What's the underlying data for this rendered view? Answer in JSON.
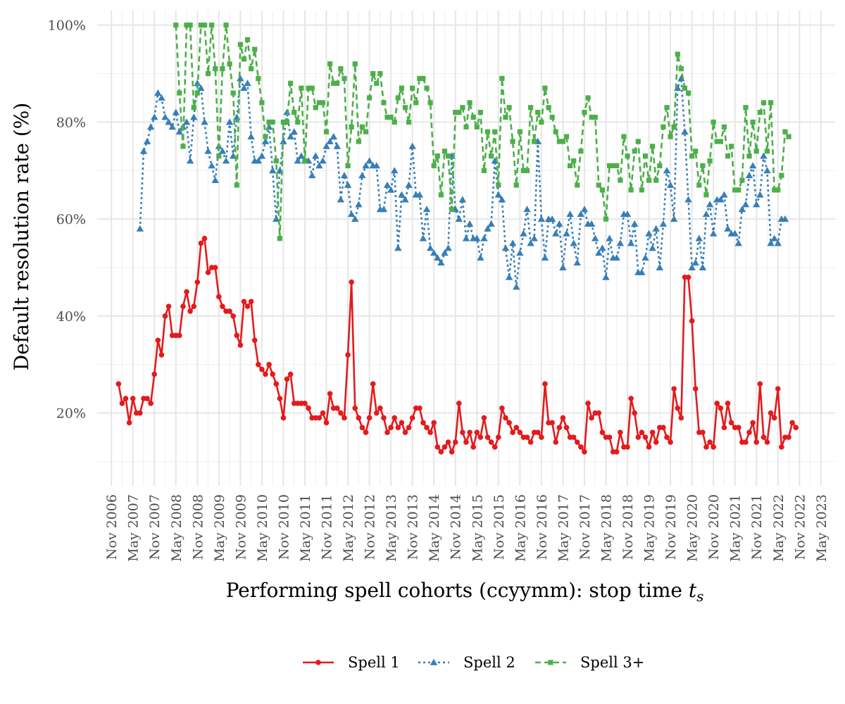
{
  "chart_data": {
    "type": "line",
    "title": "",
    "xlabel": "Performing spell cohorts (ccyymm): stop time",
    "xlabel_symbol": "t",
    "xlabel_subscript": "s",
    "ylabel": "Default resolution rate (%)",
    "x_start": "2006-11",
    "x_end": "2023-05",
    "ylim": [
      0.05,
      1.03
    ],
    "y_ticks": [
      0.2,
      0.4,
      0.6,
      0.8,
      1.0
    ],
    "y_tick_labels": [
      "20%",
      "40%",
      "60%",
      "80%",
      "100%"
    ],
    "x_ticks": [
      "2006-11",
      "2007-05",
      "2007-11",
      "2008-05",
      "2008-11",
      "2009-05",
      "2009-11",
      "2010-05",
      "2010-11",
      "2011-05",
      "2011-11",
      "2012-05",
      "2012-11",
      "2013-05",
      "2013-11",
      "2014-05",
      "2014-11",
      "2015-05",
      "2015-11",
      "2016-05",
      "2016-11",
      "2017-05",
      "2017-11",
      "2018-05",
      "2018-11",
      "2019-05",
      "2019-11",
      "2020-05",
      "2020-11",
      "2021-05",
      "2021-11",
      "2022-05",
      "2022-11",
      "2023-05"
    ],
    "x_tick_labels": [
      "Nov 2006",
      "May 2007",
      "Nov 2007",
      "May 2008",
      "Nov 2008",
      "May 2009",
      "Nov 2009",
      "May 2010",
      "Nov 2010",
      "May 2011",
      "Nov 2011",
      "May 2012",
      "Nov 2012",
      "May 2013",
      "Nov 2013",
      "May 2014",
      "Nov 2014",
      "May 2015",
      "Nov 2015",
      "May 2016",
      "Nov 2016",
      "May 2017",
      "Nov 2017",
      "May 2018",
      "Nov 2018",
      "May 2019",
      "Nov 2019",
      "May 2020",
      "Nov 2020",
      "May 2021",
      "Nov 2021",
      "May 2022",
      "Nov 2022",
      "May 2023"
    ],
    "grid": true,
    "legend_position": "bottom",
    "series": [
      {
        "name": "Spell 1",
        "color": "#e41a1c",
        "marker": "circle",
        "line_style": "solid",
        "start": "2007-01",
        "values": [
          0.26,
          0.22,
          0.23,
          0.18,
          0.23,
          0.2,
          0.2,
          0.23,
          0.23,
          0.22,
          0.28,
          0.35,
          0.32,
          0.4,
          0.42,
          0.36,
          0.36,
          0.36,
          0.42,
          0.45,
          0.41,
          0.42,
          0.47,
          0.55,
          0.56,
          0.49,
          0.5,
          0.5,
          0.44,
          0.42,
          0.41,
          0.41,
          0.4,
          0.36,
          0.34,
          0.43,
          0.42,
          0.43,
          0.35,
          0.3,
          0.29,
          0.28,
          0.3,
          0.28,
          0.26,
          0.23,
          0.19,
          0.27,
          0.28,
          0.22,
          0.22,
          0.22,
          0.22,
          0.21,
          0.19,
          0.19,
          0.19,
          0.2,
          0.18,
          0.24,
          0.21,
          0.21,
          0.2,
          0.19,
          0.32,
          0.47,
          0.21,
          0.19,
          0.17,
          0.16,
          0.19,
          0.26,
          0.2,
          0.21,
          0.19,
          0.16,
          0.17,
          0.19,
          0.17,
          0.18,
          0.16,
          0.17,
          0.19,
          0.21,
          0.21,
          0.18,
          0.17,
          0.16,
          0.18,
          0.13,
          0.12,
          0.13,
          0.14,
          0.12,
          0.14,
          0.22,
          0.16,
          0.14,
          0.16,
          0.13,
          0.16,
          0.15,
          0.19,
          0.15,
          0.14,
          0.13,
          0.15,
          0.21,
          0.19,
          0.18,
          0.16,
          0.17,
          0.16,
          0.15,
          0.15,
          0.14,
          0.16,
          0.16,
          0.15,
          0.26,
          0.18,
          0.18,
          0.14,
          0.17,
          0.19,
          0.17,
          0.15,
          0.15,
          0.14,
          0.13,
          0.12,
          0.22,
          0.19,
          0.2,
          0.2,
          0.16,
          0.15,
          0.15,
          0.12,
          0.12,
          0.16,
          0.13,
          0.13,
          0.23,
          0.2,
          0.15,
          0.16,
          0.15,
          0.13,
          0.16,
          0.14,
          0.17,
          0.17,
          0.15,
          0.14,
          0.25,
          0.21,
          0.19,
          0.48,
          0.48,
          0.39,
          0.25,
          0.16,
          0.16,
          0.13,
          0.14,
          0.13,
          0.22,
          0.21,
          0.17,
          0.22,
          0.18,
          0.17,
          0.17,
          0.14,
          0.14,
          0.16,
          0.18,
          0.14,
          0.26,
          0.15,
          0.14,
          0.2,
          0.19,
          0.25,
          0.13,
          0.15,
          0.15,
          0.18,
          0.17
        ]
      },
      {
        "name": "Spell 2",
        "color": "#377eb8",
        "marker": "triangle",
        "line_style": "dotted",
        "start": "2007-07",
        "values": [
          0.58,
          0.74,
          0.76,
          0.79,
          0.81,
          0.86,
          0.85,
          0.81,
          0.8,
          0.79,
          0.82,
          0.78,
          0.79,
          0.8,
          0.72,
          0.81,
          0.88,
          0.87,
          0.8,
          0.74,
          0.71,
          0.68,
          0.75,
          0.74,
          0.72,
          0.8,
          0.73,
          0.81,
          0.89,
          0.87,
          0.88,
          0.77,
          0.72,
          0.72,
          0.73,
          0.76,
          0.79,
          0.7,
          0.6,
          0.7,
          0.76,
          0.82,
          0.77,
          0.78,
          0.72,
          0.73,
          0.72,
          0.72,
          0.69,
          0.73,
          0.71,
          0.72,
          0.75,
          0.76,
          0.77,
          0.75,
          0.64,
          0.69,
          0.67,
          0.61,
          0.6,
          0.63,
          0.69,
          0.71,
          0.72,
          0.71,
          0.71,
          0.62,
          0.62,
          0.67,
          0.66,
          0.7,
          0.54,
          0.65,
          0.64,
          0.67,
          0.75,
          0.65,
          0.65,
          0.56,
          0.62,
          0.54,
          0.53,
          0.52,
          0.51,
          0.53,
          0.54,
          0.73,
          0.62,
          0.6,
          0.64,
          0.56,
          0.59,
          0.56,
          0.56,
          0.52,
          0.56,
          0.58,
          0.59,
          0.72,
          0.65,
          0.64,
          0.54,
          0.48,
          0.55,
          0.46,
          0.53,
          0.57,
          0.62,
          0.55,
          0.56,
          0.76,
          0.6,
          0.52,
          0.6,
          0.6,
          0.57,
          0.59,
          0.5,
          0.57,
          0.61,
          0.55,
          0.51,
          0.61,
          0.62,
          0.59,
          0.59,
          0.56,
          0.53,
          0.54,
          0.48,
          0.56,
          0.52,
          0.52,
          0.55,
          0.61,
          0.61,
          0.55,
          0.59,
          0.49,
          0.49,
          0.52,
          0.57,
          0.54,
          0.58,
          0.5,
          0.59,
          0.7,
          0.67,
          0.6,
          0.87,
          0.89,
          0.78,
          0.64,
          0.5,
          0.51,
          0.56,
          0.5,
          0.61,
          0.63,
          0.57,
          0.64,
          0.64,
          0.65,
          0.58,
          0.57,
          0.57,
          0.55,
          0.62,
          0.63,
          0.69,
          0.71,
          0.63,
          0.65,
          0.73,
          0.7,
          0.55,
          0.56,
          0.55,
          0.6,
          0.6
        ]
      },
      {
        "name": "Spell 3+",
        "color": "#4daf4a",
        "marker": "square",
        "line_style": "dashed",
        "start": "2008-05",
        "values": [
          1.0,
          0.86,
          0.75,
          1.0,
          1.0,
          0.83,
          0.86,
          1.0,
          1.0,
          0.9,
          1.0,
          0.91,
          0.73,
          0.91,
          1.0,
          0.92,
          0.86,
          0.67,
          0.96,
          0.93,
          0.97,
          0.91,
          0.95,
          0.89,
          0.84,
          0.77,
          0.8,
          0.8,
          0.72,
          0.56,
          0.8,
          0.8,
          0.88,
          0.82,
          0.8,
          0.87,
          0.72,
          0.87,
          0.87,
          0.83,
          0.84,
          0.84,
          0.78,
          0.92,
          0.88,
          0.88,
          0.91,
          0.89,
          0.71,
          0.79,
          0.92,
          0.76,
          0.79,
          0.78,
          0.85,
          0.9,
          0.88,
          0.9,
          0.84,
          0.81,
          0.81,
          0.8,
          0.85,
          0.87,
          0.83,
          0.8,
          0.87,
          0.84,
          0.89,
          0.89,
          0.87,
          0.84,
          0.71,
          0.73,
          0.65,
          0.74,
          0.73,
          0.62,
          0.82,
          0.82,
          0.83,
          0.79,
          0.84,
          0.81,
          0.79,
          0.82,
          0.7,
          0.78,
          0.73,
          0.78,
          0.67,
          0.89,
          0.81,
          0.83,
          0.76,
          0.67,
          0.78,
          0.7,
          0.7,
          0.83,
          0.76,
          0.82,
          0.8,
          0.87,
          0.83,
          0.81,
          0.78,
          0.76,
          0.76,
          0.77,
          0.71,
          0.72,
          0.67,
          0.74,
          0.82,
          0.85,
          0.81,
          0.81,
          0.67,
          0.66,
          0.6,
          0.71,
          0.71,
          0.71,
          0.68,
          0.77,
          0.73,
          0.66,
          0.74,
          0.76,
          0.66,
          0.73,
          0.68,
          0.75,
          0.68,
          0.71,
          0.79,
          0.83,
          0.77,
          0.79,
          0.94,
          0.91,
          0.87,
          0.86,
          0.73,
          0.74,
          0.67,
          0.71,
          0.65,
          0.72,
          0.8,
          0.76,
          0.76,
          0.79,
          0.73,
          0.75,
          0.66,
          0.66,
          0.68,
          0.83,
          0.73,
          0.8,
          0.74,
          0.82,
          0.84,
          0.74,
          0.84,
          0.66,
          0.66,
          0.69,
          0.78,
          0.77
        ]
      }
    ]
  }
}
